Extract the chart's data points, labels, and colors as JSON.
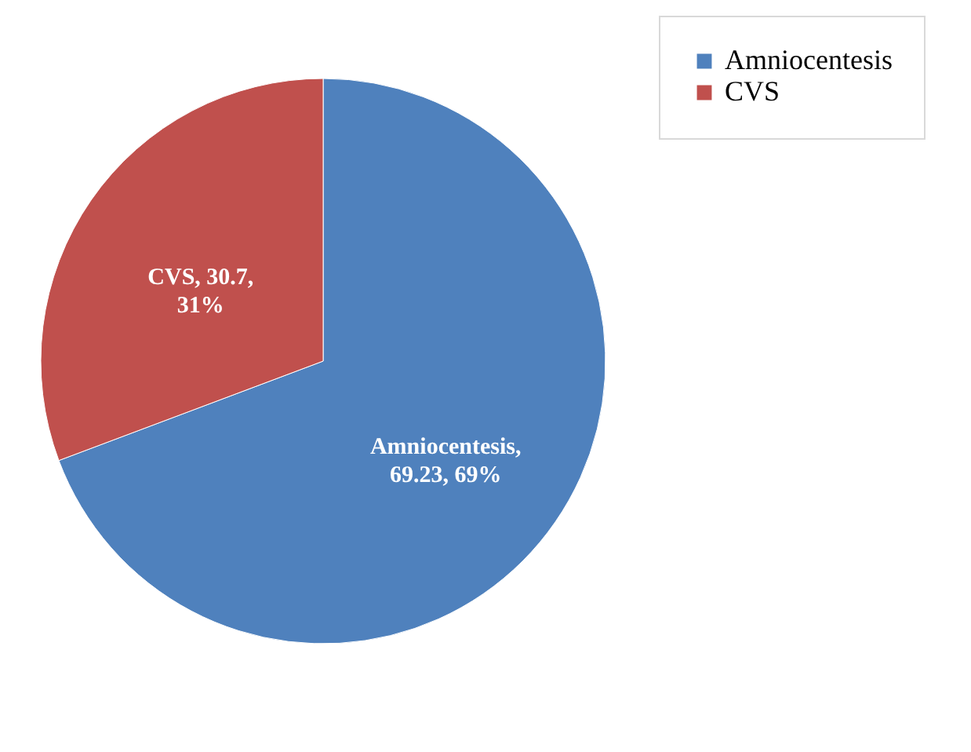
{
  "chart_data": {
    "type": "pie",
    "categories": [
      "Amniocentesis",
      "CVS"
    ],
    "values": [
      69.23,
      30.7
    ],
    "colors": [
      "#4f81bd",
      "#c0504d"
    ],
    "value_labels": [
      "Amniocentesis,\n69.23, 69%",
      "CVS, 30.7,\n31%"
    ],
    "legend": "right"
  }
}
